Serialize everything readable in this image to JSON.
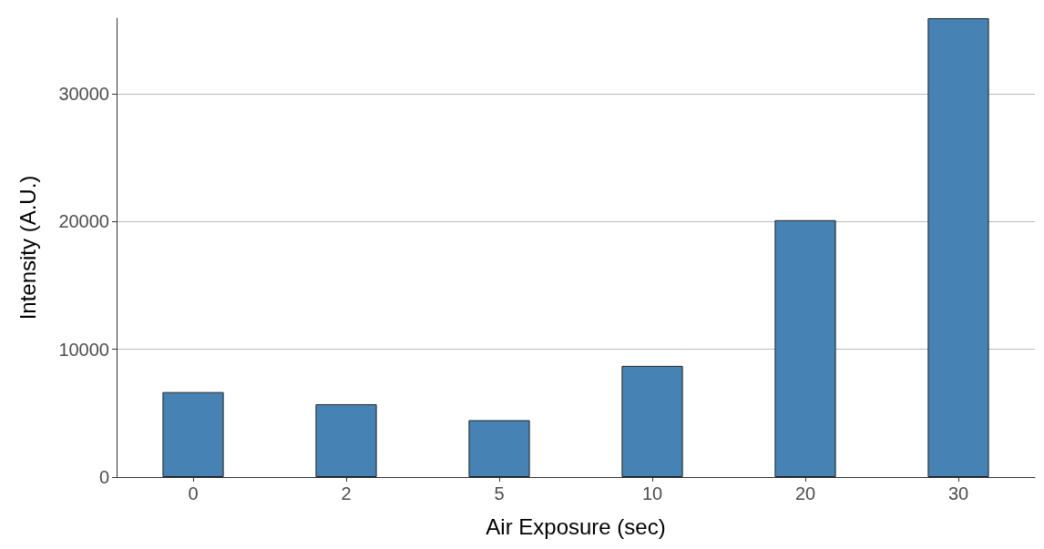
{
  "chart_data": {
    "type": "bar",
    "xlabel": "Air Exposure (sec)",
    "ylabel": "Intensity (A.U.)",
    "categories": [
      "0",
      "2",
      "5",
      "10",
      "20",
      "30"
    ],
    "values": [
      6650,
      5700,
      4450,
      8700,
      20100,
      35900
    ],
    "color": "#4682b4",
    "ylim": [
      0,
      35900
    ],
    "yticks": [
      0,
      10000,
      20000,
      30000
    ],
    "grid": "y"
  }
}
